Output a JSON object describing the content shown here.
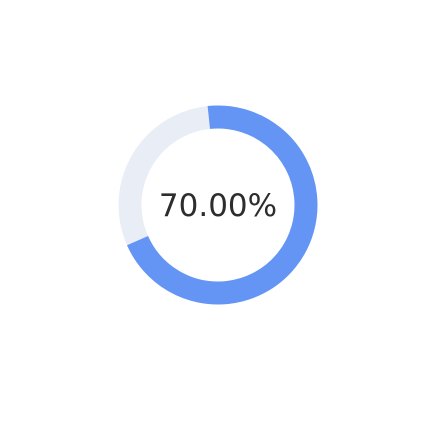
{
  "progress": {
    "value": 0.7,
    "label": "70.00%",
    "track_color": "#e9eef6",
    "fill_color": "#6495f5",
    "text_color": "#2d2d2d"
  }
}
